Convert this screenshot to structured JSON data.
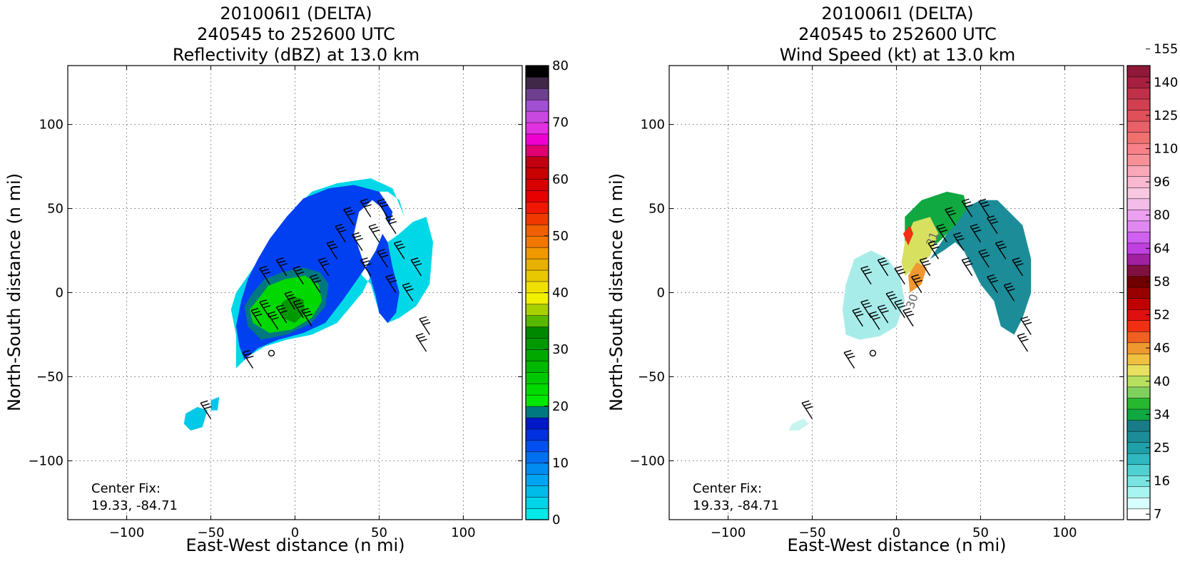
{
  "chart_data": [
    {
      "type": "heatmap",
      "title_lines": [
        "201006I1 (DELTA)",
        "240545 to 252600 UTC",
        "Reflectivity (dBZ) at 13.0 km"
      ],
      "xlabel": "East-West distance (n mi)",
      "ylabel": "North-South distance (n mi)",
      "xlim": [
        -135,
        135
      ],
      "ylim": [
        -135,
        135
      ],
      "xticks": [
        -100,
        -50,
        0,
        50,
        100
      ],
      "yticks": [
        -100,
        -50,
        0,
        50,
        100
      ],
      "grid": true,
      "annotation": [
        "Center Fix:",
        "19.33, -84.71"
      ],
      "colorbar": {
        "range": [
          0,
          80
        ],
        "ticks": [
          0,
          10,
          20,
          30,
          40,
          50,
          60,
          70,
          80
        ],
        "colors": [
          "#00e8e8",
          "#00d4e8",
          "#00bce8",
          "#00a4f0",
          "#008cf0",
          "#0070f0",
          "#0050f0",
          "#0030e0",
          "#0018c8",
          "#007880",
          "#00e800",
          "#00d800",
          "#00c800",
          "#00b800",
          "#00a800",
          "#009800",
          "#008800",
          "#58b800",
          "#a8d000",
          "#f0f000",
          "#f0e000",
          "#e8c800",
          "#e8b000",
          "#f09800",
          "#f07800",
          "#f06000",
          "#f03800",
          "#f01800",
          "#e80000",
          "#d80000",
          "#c80000",
          "#c00010",
          "#e00070",
          "#f000d0",
          "#e030e0",
          "#c848e0",
          "#a050d0",
          "#704090",
          "#402848",
          "#000000"
        ]
      },
      "echo_regions": [
        {
          "level": "low-dBZ (cyan)",
          "color": "#00d8e8",
          "polygon": [
            [
              -35,
              -45
            ],
            [
              -28,
              -38
            ],
            [
              -18,
              -32
            ],
            [
              -5,
              -28
            ],
            [
              10,
              -25
            ],
            [
              25,
              -18
            ],
            [
              40,
              0
            ],
            [
              50,
              20
            ],
            [
              55,
              30
            ],
            [
              62,
              35
            ],
            [
              70,
              42
            ],
            [
              78,
              45
            ],
            [
              82,
              30
            ],
            [
              80,
              5
            ],
            [
              72,
              -8
            ],
            [
              62,
              -15
            ],
            [
              55,
              -18
            ],
            [
              50,
              -12
            ],
            [
              48,
              -5
            ],
            [
              45,
              5
            ],
            [
              40,
              10
            ],
            [
              35,
              20
            ],
            [
              30,
              35
            ],
            [
              32,
              50
            ],
            [
              40,
              60
            ],
            [
              55,
              60
            ],
            [
              62,
              55
            ],
            [
              65,
              45
            ],
            [
              58,
              62
            ],
            [
              45,
              68
            ],
            [
              25,
              65
            ],
            [
              10,
              60
            ],
            [
              0,
              50
            ],
            [
              -10,
              35
            ],
            [
              -20,
              22
            ],
            [
              -28,
              10
            ],
            [
              -35,
              0
            ],
            [
              -38,
              -10
            ],
            [
              -35,
              -25
            ]
          ]
        },
        {
          "level": "10-15 dBZ (blue)",
          "color": "#0040f0",
          "polygon": [
            [
              -30,
              -40
            ],
            [
              -22,
              -33
            ],
            [
              -10,
              -28
            ],
            [
              5,
              -24
            ],
            [
              18,
              -18
            ],
            [
              28,
              -5
            ],
            [
              35,
              5
            ],
            [
              42,
              15
            ],
            [
              48,
              25
            ],
            [
              52,
              35
            ],
            [
              55,
              30
            ],
            [
              58,
              15
            ],
            [
              62,
              0
            ],
            [
              60,
              -12
            ],
            [
              55,
              -18
            ],
            [
              50,
              -12
            ],
            [
              48,
              -2
            ],
            [
              45,
              8
            ],
            [
              40,
              20
            ],
            [
              35,
              35
            ],
            [
              38,
              48
            ],
            [
              46,
              55
            ],
            [
              52,
              50
            ],
            [
              56,
              40
            ],
            [
              58,
              48
            ],
            [
              50,
              60
            ],
            [
              35,
              64
            ],
            [
              20,
              62
            ],
            [
              5,
              56
            ],
            [
              -5,
              45
            ],
            [
              -15,
              32
            ],
            [
              -22,
              20
            ],
            [
              -28,
              8
            ],
            [
              -32,
              -5
            ],
            [
              -35,
              -20
            ],
            [
              -33,
              -32
            ]
          ]
        },
        {
          "level": "15 dBZ (teal)",
          "color": "#007880",
          "polygon": [
            [
              -28,
              -20
            ],
            [
              -20,
              -28
            ],
            [
              -5,
              -25
            ],
            [
              10,
              -18
            ],
            [
              18,
              -8
            ],
            [
              20,
              5
            ],
            [
              15,
              12
            ],
            [
              5,
              15
            ],
            [
              -8,
              12
            ],
            [
              -18,
              8
            ],
            [
              -25,
              0
            ],
            [
              -30,
              -8
            ]
          ]
        },
        {
          "level": "20-30 dBZ (green)",
          "color": "#00d800",
          "polygon": [
            [
              -25,
              -18
            ],
            [
              -15,
              -24
            ],
            [
              -2,
              -22
            ],
            [
              10,
              -15
            ],
            [
              16,
              -5
            ],
            [
              14,
              5
            ],
            [
              6,
              10
            ],
            [
              -6,
              8
            ],
            [
              -16,
              4
            ],
            [
              -22,
              -4
            ],
            [
              -27,
              -10
            ]
          ]
        },
        {
          "level": "30 dBZ (dark green)",
          "color": "#009800",
          "polygon": [
            [
              -8,
              -15
            ],
            [
              0,
              -18
            ],
            [
              6,
              -12
            ],
            [
              5,
              -4
            ],
            [
              -2,
              -2
            ],
            [
              -8,
              -6
            ]
          ]
        },
        {
          "level": "small echo SW",
          "color": "#00c8e8",
          "polygon": [
            [
              -65,
              -72
            ],
            [
              -58,
              -68
            ],
            [
              -52,
              -70
            ],
            [
              -55,
              -80
            ],
            [
              -62,
              -82
            ],
            [
              -66,
              -78
            ]
          ]
        },
        {
          "level": "small echo W",
          "color": "#00c8e8",
          "polygon": [
            [
              -50,
              -64
            ],
            [
              -45,
              -62
            ],
            [
              -46,
              -70
            ],
            [
              -50,
              -70
            ]
          ]
        }
      ],
      "barbs": [
        [
          -25,
          -45
        ],
        [
          -20,
          -20
        ],
        [
          -15,
          -15
        ],
        [
          -10,
          -22
        ],
        [
          -5,
          -18
        ],
        [
          0,
          -10
        ],
        [
          5,
          -15
        ],
        [
          10,
          -20
        ],
        [
          -15,
          5
        ],
        [
          -5,
          10
        ],
        [
          5,
          5
        ],
        [
          15,
          0
        ],
        [
          20,
          10
        ],
        [
          25,
          20
        ],
        [
          30,
          30
        ],
        [
          35,
          40
        ],
        [
          45,
          45
        ],
        [
          55,
          45
        ],
        [
          40,
          25
        ],
        [
          50,
          30
        ],
        [
          60,
          35
        ],
        [
          45,
          10
        ],
        [
          55,
          15
        ],
        [
          65,
          20
        ],
        [
          60,
          0
        ],
        [
          70,
          -5
        ],
        [
          75,
          10
        ],
        [
          80,
          -25
        ],
        [
          78,
          -35
        ],
        [
          -50,
          -75
        ]
      ]
    },
    {
      "type": "heatmap",
      "title_lines": [
        "201006I1 (DELTA)",
        "240545 to 252600 UTC",
        "Wind Speed (kt) at 13.0 km"
      ],
      "xlabel": "East-West distance (n mi)",
      "ylabel": "North-South distance (n mi)",
      "xlim": [
        -135,
        135
      ],
      "ylim": [
        -135,
        135
      ],
      "xticks": [
        -100,
        -50,
        0,
        50,
        100
      ],
      "yticks": [
        -100,
        -50,
        0,
        50,
        100
      ],
      "grid": true,
      "annotation": [
        "Center Fix:",
        "19.33, -84.71"
      ],
      "colorbar": {
        "ticklabels": [
          "7",
          "16",
          "25",
          "34",
          "40",
          "46",
          "52",
          "58",
          "64",
          "80",
          "96",
          "110",
          "125",
          "140",
          "155"
        ],
        "colors": [
          "#ffffff",
          "#d8ffff",
          "#a8f4f0",
          "#78e4e0",
          "#50d0d0",
          "#30b8c0",
          "#20a0a8",
          "#1c8c98",
          "#187c88",
          "#10a840",
          "#28b830",
          "#80d060",
          "#b8e060",
          "#e8e060",
          "#f0c040",
          "#f09830",
          "#f06020",
          "#f03010",
          "#e01010",
          "#c00000",
          "#980000",
          "#700000",
          "#801040",
          "#a020a0",
          "#c040e0",
          "#d060f0",
          "#e088f0",
          "#eca0f0",
          "#f4bce8",
          "#f8c8e0",
          "#f8b8d0",
          "#f8a8b8",
          "#f89098",
          "#f88088",
          "#f07070",
          "#e86068",
          "#e05058",
          "#d04050",
          "#c03048",
          "#a82040",
          "#901838"
        ]
      },
      "speed_regions": [
        {
          "level": "low wind (light cyan)",
          "color": "#a8ecea",
          "polygon": [
            [
              -30,
              -25
            ],
            [
              -22,
              -28
            ],
            [
              -10,
              -26
            ],
            [
              0,
              -20
            ],
            [
              5,
              -5
            ],
            [
              2,
              10
            ],
            [
              -5,
              20
            ],
            [
              -15,
              25
            ],
            [
              -25,
              20
            ],
            [
              -30,
              5
            ],
            [
              -32,
              -10
            ]
          ]
        },
        {
          "level": "25 kt (teal)",
          "color": "#1c8c98",
          "polygon": [
            [
              20,
              20
            ],
            [
              30,
              35
            ],
            [
              40,
              50
            ],
            [
              50,
              55
            ],
            [
              60,
              55
            ],
            [
              70,
              45
            ],
            [
              75,
              40
            ],
            [
              80,
              20
            ],
            [
              80,
              0
            ],
            [
              75,
              -15
            ],
            [
              70,
              -25
            ],
            [
              62,
              -20
            ],
            [
              58,
              -5
            ],
            [
              50,
              5
            ],
            [
              45,
              15
            ],
            [
              40,
              25
            ],
            [
              35,
              30
            ],
            [
              28,
              25
            ]
          ]
        },
        {
          "level": "34 kt (green)",
          "color": "#10a840",
          "polygon": [
            [
              5,
              45
            ],
            [
              15,
              55
            ],
            [
              30,
              60
            ],
            [
              40,
              58
            ],
            [
              42,
              50
            ],
            [
              35,
              40
            ],
            [
              25,
              30
            ],
            [
              15,
              25
            ],
            [
              5,
              30
            ]
          ]
        },
        {
          "level": "40-46 kt (yellow)",
          "color": "#d8e060",
          "polygon": [
            [
              5,
              10
            ],
            [
              12,
              15
            ],
            [
              20,
              22
            ],
            [
              25,
              35
            ],
            [
              20,
              45
            ],
            [
              10,
              42
            ],
            [
              5,
              30
            ],
            [
              3,
              18
            ]
          ]
        },
        {
          "level": "52-58 kt (red)",
          "color": "#f03010",
          "polygon": [
            [
              4,
              35
            ],
            [
              8,
              40
            ],
            [
              10,
              35
            ],
            [
              7,
              28
            ]
          ]
        },
        {
          "level": "46 kt (orange)",
          "color": "#f09830",
          "polygon": [
            [
              8,
              0
            ],
            [
              15,
              5
            ],
            [
              18,
              15
            ],
            [
              12,
              18
            ],
            [
              7,
              10
            ]
          ]
        },
        {
          "level": "low wind SW (light)",
          "color": "#c8f4f0",
          "polygon": [
            [
              -62,
              -78
            ],
            [
              -55,
              -75
            ],
            [
              -52,
              -78
            ],
            [
              -58,
              -82
            ],
            [
              -64,
              -82
            ]
          ]
        }
      ],
      "barbs": [
        [
          -25,
          -45
        ],
        [
          -20,
          -20
        ],
        [
          -15,
          -15
        ],
        [
          -10,
          -22
        ],
        [
          -5,
          -18
        ],
        [
          0,
          -10
        ],
        [
          5,
          -15
        ],
        [
          10,
          -20
        ],
        [
          -15,
          5
        ],
        [
          -5,
          10
        ],
        [
          5,
          5
        ],
        [
          15,
          0
        ],
        [
          20,
          10
        ],
        [
          25,
          20
        ],
        [
          30,
          30
        ],
        [
          35,
          40
        ],
        [
          45,
          45
        ],
        [
          55,
          45
        ],
        [
          40,
          25
        ],
        [
          50,
          30
        ],
        [
          60,
          35
        ],
        [
          45,
          10
        ],
        [
          55,
          15
        ],
        [
          65,
          20
        ],
        [
          60,
          0
        ],
        [
          70,
          -5
        ],
        [
          75,
          10
        ],
        [
          80,
          -25
        ],
        [
          78,
          -35
        ],
        [
          -50,
          -75
        ]
      ],
      "contour_labels": [
        {
          "text": "30",
          "x": 10,
          "y": -10
        },
        {
          "text": "31",
          "x": 22,
          "y": 27
        }
      ]
    }
  ]
}
